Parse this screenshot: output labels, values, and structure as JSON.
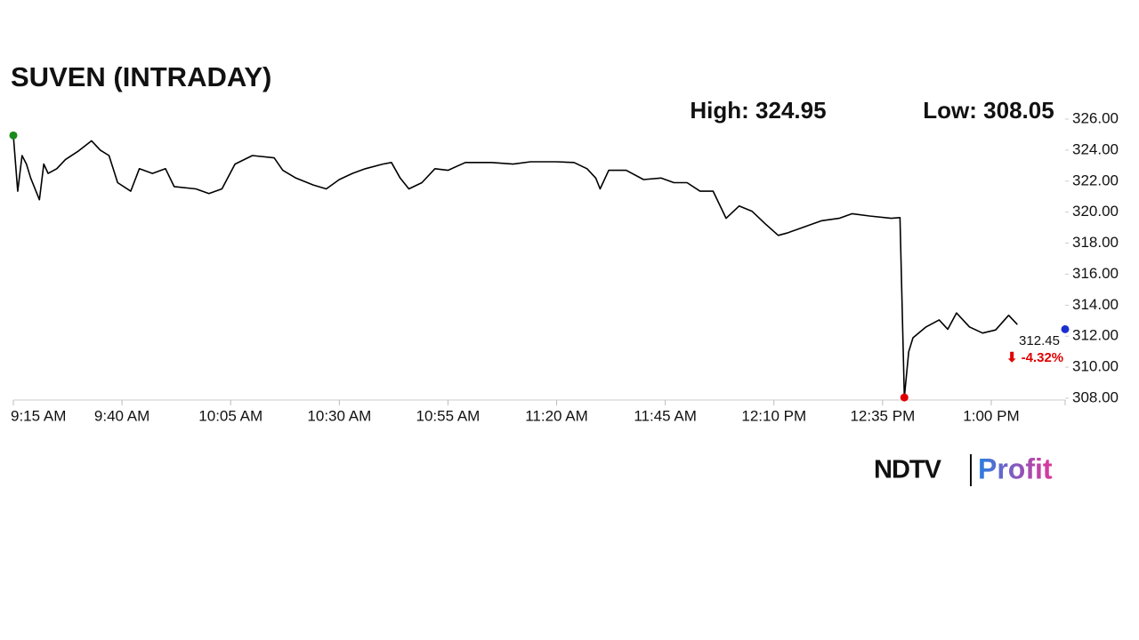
{
  "chart_data": {
    "type": "line",
    "title": "SUVEN (INTRADAY)",
    "high_label": "High: 324.95",
    "low_label": "Low: 308.05",
    "last_label": "312.45",
    "change_label": "⬇ -4.32%",
    "brand": {
      "left": "NDTV",
      "right": "Profit"
    },
    "x": [
      "9:15 AM",
      "9:16 AM",
      "9:17 AM",
      "9:18 AM",
      "9:19 AM",
      "9:21 AM",
      "9:22 AM",
      "9:23 AM",
      "9:25 AM",
      "9:27 AM",
      "9:30 AM",
      "9:33 AM",
      "9:35 AM",
      "9:37 AM",
      "9:39 AM",
      "9:42 AM",
      "9:44 AM",
      "9:47 AM",
      "9:50 AM",
      "9:52 AM",
      "9:57 AM",
      "10:00 AM",
      "10:03 AM",
      "10:06 AM",
      "10:10 AM",
      "10:15 AM",
      "10:17 AM",
      "10:20 AM",
      "10:24 AM",
      "10:27 AM",
      "10:30 AM",
      "10:33 AM",
      "10:36 AM",
      "10:40 AM",
      "10:42 AM",
      "10:44 AM",
      "10:46 AM",
      "10:49 AM",
      "10:52 AM",
      "10:55 AM",
      "10:59 AM",
      "11:05 AM",
      "11:10 AM",
      "11:14 AM",
      "11:20 AM",
      "11:24 AM",
      "11:27 AM",
      "11:29 AM",
      "11:30 AM",
      "11:32 AM",
      "11:36 AM",
      "11:40 AM",
      "11:44 AM",
      "11:47 AM",
      "11:50 AM",
      "11:53 AM",
      "11:56 AM",
      "11:59 AM",
      "12:02 PM",
      "12:05 PM",
      "12:08 PM",
      "12:11 PM",
      "12:13 PM",
      "12:17 PM",
      "12:21 PM",
      "12:25 PM",
      "12:28 PM",
      "12:32 PM",
      "12:37 PM",
      "12:39 PM",
      "12:40 PM",
      "12:41 PM",
      "12:42 PM",
      "12:45 PM",
      "12:48 PM",
      "12:50 PM",
      "12:52 PM",
      "12:55 PM",
      "12:58 PM",
      "1:01 PM",
      "1:04 PM",
      "1:06 PM",
      "1:10 PM",
      "1:17 PM"
    ],
    "series": [
      {
        "name": "SUVEN",
        "color": "#000000",
        "values": [
          324.95,
          321.35,
          323.65,
          323.1,
          322.2,
          320.8,
          323.1,
          322.5,
          322.8,
          323.4,
          323.95,
          324.6,
          324.0,
          323.65,
          321.9,
          321.35,
          322.8,
          322.5,
          322.8,
          321.65,
          321.5,
          321.2,
          321.5,
          323.1,
          323.65,
          323.5,
          322.7,
          322.2,
          321.75,
          321.5,
          322.1,
          322.5,
          322.8,
          323.1,
          323.2,
          322.2,
          321.5,
          321.9,
          322.8,
          322.7,
          323.2,
          323.2,
          323.1,
          323.25,
          323.25,
          323.2,
          322.8,
          322.2,
          321.5,
          322.7,
          322.7,
          322.1,
          322.2,
          321.9,
          321.9,
          321.35,
          321.35,
          319.6,
          320.4,
          320.05,
          319.25,
          318.5,
          318.65,
          319.05,
          319.45,
          319.6,
          319.9,
          319.75,
          319.6,
          319.65,
          308.05,
          311.0,
          311.9,
          312.6,
          313.05,
          312.45,
          313.5,
          312.6,
          312.2,
          312.4,
          313.35,
          312.75,
          null,
          312.45
        ]
      }
    ],
    "marker_colors": {
      "first": "#1a8a1a",
      "low": "#e00000",
      "last": "#1a2fd0"
    },
    "xlim": [
      "9:15 AM",
      "1:17 PM"
    ],
    "xticks": [
      "9:15 AM",
      "9:40 AM",
      "10:05 AM",
      "10:30 AM",
      "10:55 AM",
      "11:20 AM",
      "11:45 AM",
      "12:10 PM",
      "12:35 PM",
      "1:00 PM"
    ],
    "ylim": [
      308,
      326
    ],
    "yticks": [
      {
        "value": 308,
        "label": "308.00"
      },
      {
        "value": 310,
        "label": "310.00"
      },
      {
        "value": 312,
        "label": "312.00"
      },
      {
        "value": 314,
        "label": "314.00"
      },
      {
        "value": 316,
        "label": "316.00"
      },
      {
        "value": 318,
        "label": "318.00"
      },
      {
        "value": 320,
        "label": "320.00"
      },
      {
        "value": 322,
        "label": "322.00"
      },
      {
        "value": 324,
        "label": "324.00"
      },
      {
        "value": 326,
        "label": "326.00"
      }
    ]
  }
}
